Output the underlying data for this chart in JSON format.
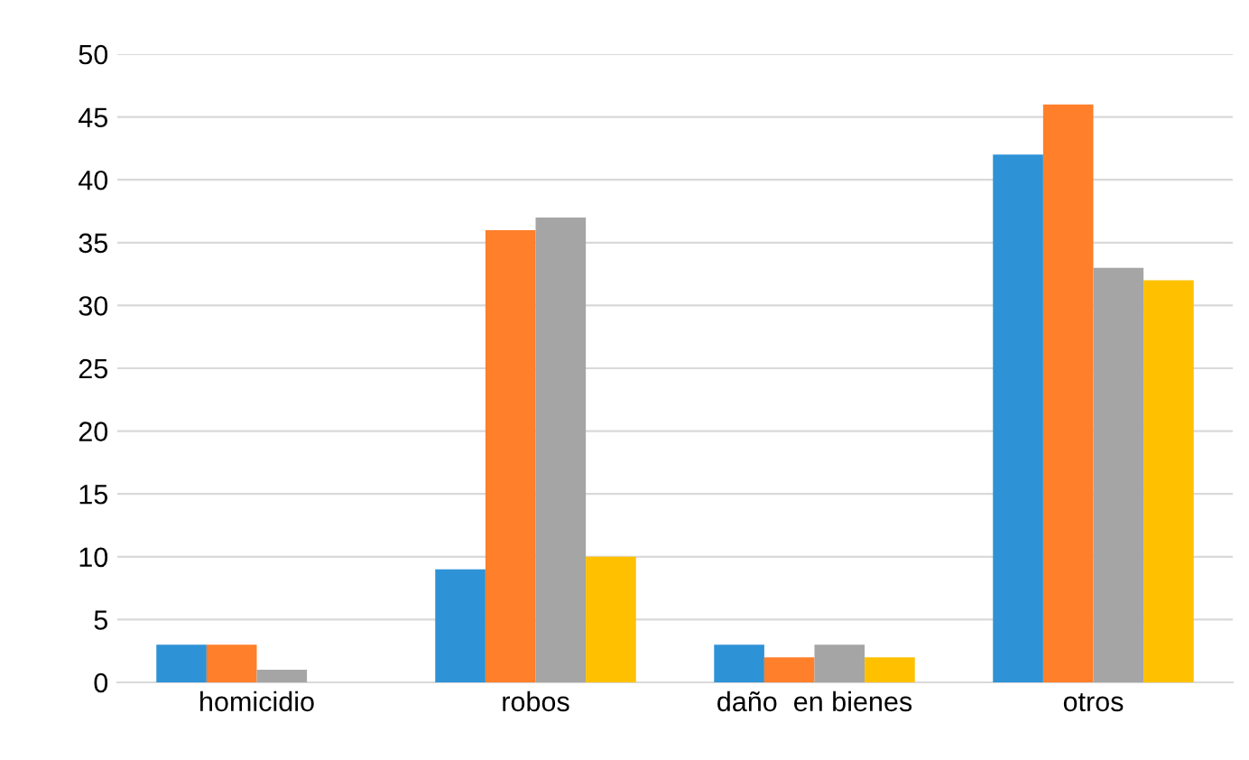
{
  "chart_data": {
    "type": "bar",
    "categories": [
      "homicidio",
      "robos",
      "daño  en bienes",
      "otros"
    ],
    "series": [
      {
        "color": "#2e92d6",
        "values": [
          3,
          9,
          3,
          42
        ]
      },
      {
        "color": "#ff7f2a",
        "values": [
          3,
          36,
          2,
          46
        ]
      },
      {
        "color": "#a5a5a5",
        "values": [
          1,
          37,
          3,
          33
        ]
      },
      {
        "color": "#ffc000",
        "values": [
          0,
          10,
          2,
          32
        ]
      }
    ],
    "ylim": [
      0,
      50
    ],
    "yticks": [
      0,
      5,
      10,
      15,
      20,
      25,
      30,
      35,
      40,
      45,
      50
    ],
    "grid": "y",
    "legend": false
  }
}
